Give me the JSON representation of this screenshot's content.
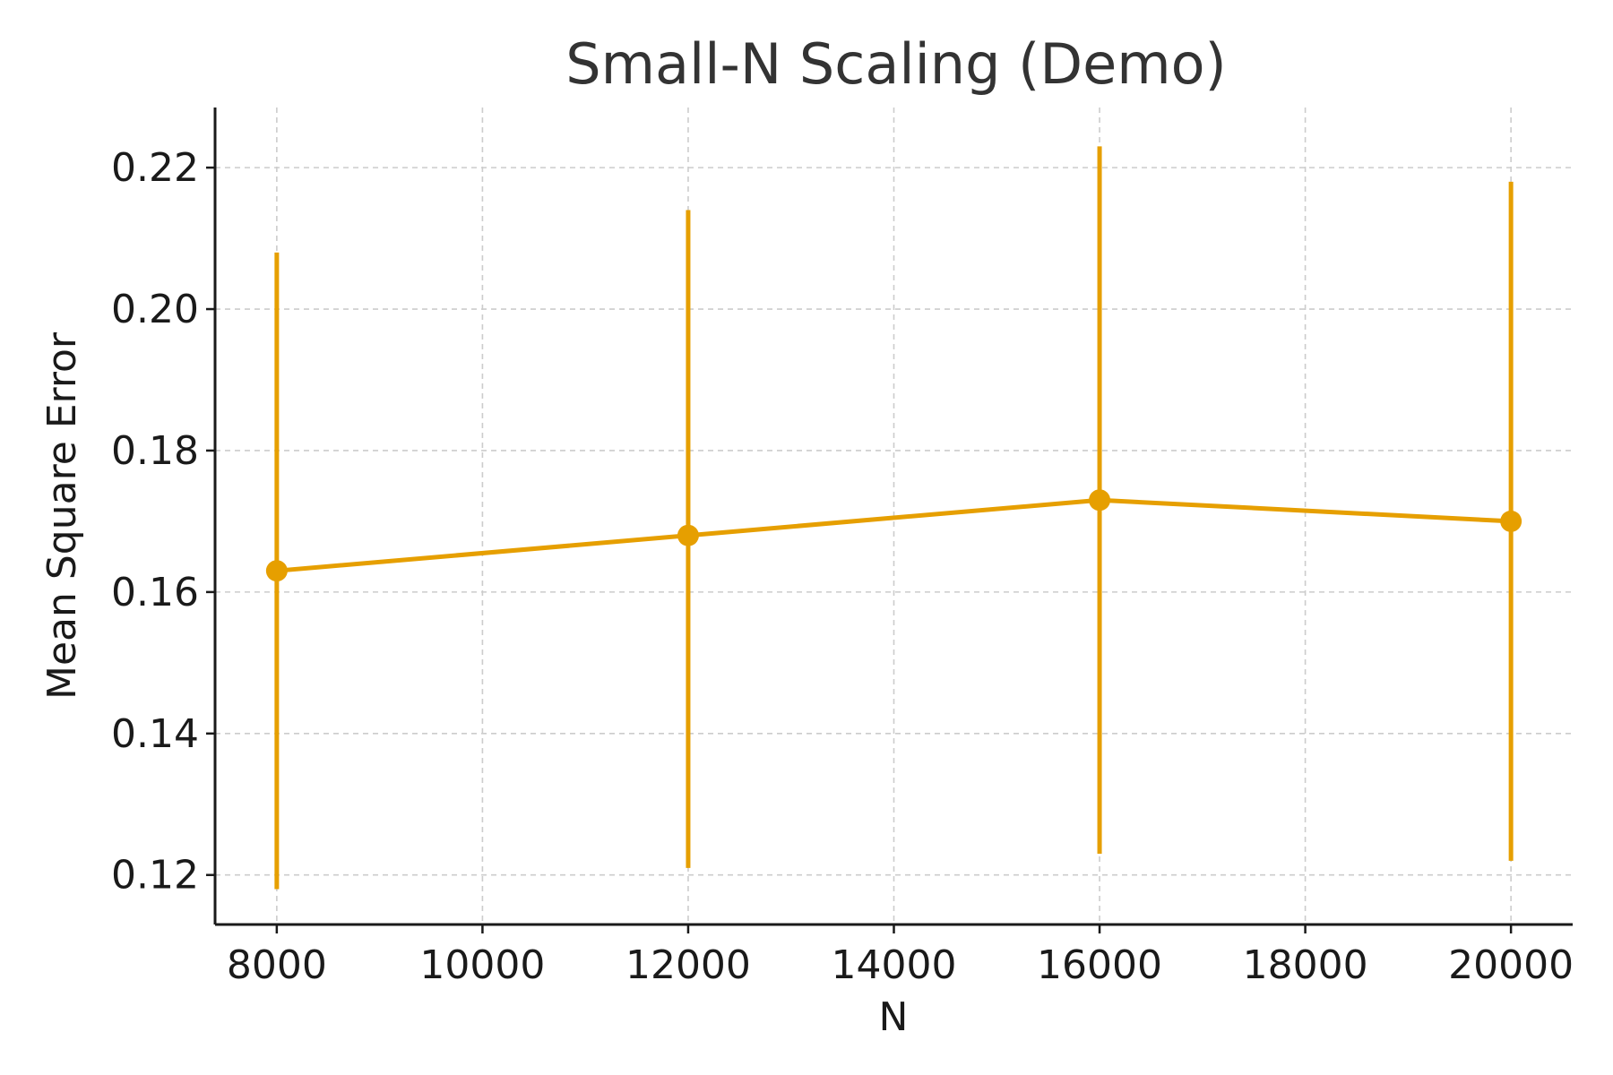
{
  "chart_data": {
    "type": "line",
    "title": "Small-N Scaling (Demo)",
    "xlabel": "N",
    "ylabel": "Mean Square Error",
    "xlim": [
      7400,
      20600
    ],
    "ylim": [
      0.113,
      0.2285
    ],
    "xticks": [
      8000,
      10000,
      12000,
      14000,
      16000,
      18000,
      20000
    ],
    "xtick_labels": [
      "8000",
      "10000",
      "12000",
      "14000",
      "16000",
      "18000",
      "20000"
    ],
    "yticks": [
      0.12,
      0.14,
      0.16,
      0.18,
      0.2,
      0.22
    ],
    "ytick_labels": [
      "0.12",
      "0.14",
      "0.16",
      "0.18",
      "0.20",
      "0.22"
    ],
    "grid": true,
    "series": [
      {
        "x": [
          8000,
          12000,
          16000,
          20000
        ],
        "y": [
          0.163,
          0.168,
          0.173,
          0.17
        ],
        "yerr_low": [
          0.118,
          0.121,
          0.123,
          0.122
        ],
        "yerr_high": [
          0.208,
          0.214,
          0.223,
          0.218
        ],
        "color": "#E69F00"
      }
    ],
    "colors": {
      "series": "#E69F00",
      "grid": "#cccccc",
      "axis": "#1a1a1a",
      "title": "#333333"
    }
  }
}
